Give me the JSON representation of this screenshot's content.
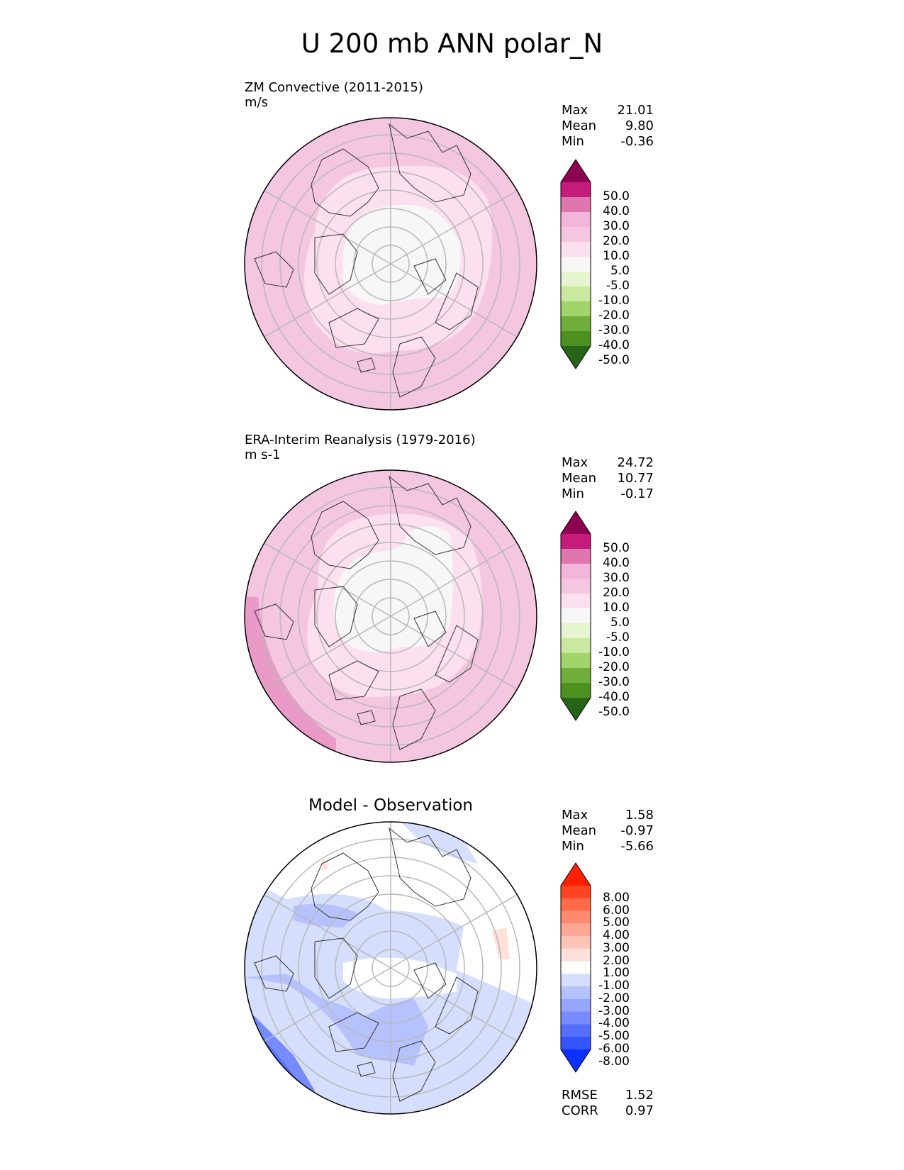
{
  "title": "U 200 mb ANN polar_N",
  "panels": [
    {
      "title": "ZM Convective (2011-2015)",
      "units": "m/s",
      "stats": {
        "max_label": "Max",
        "max": "21.01",
        "mean_label": "Mean",
        "mean": "9.80",
        "min_label": "Min",
        "min": "-0.36"
      },
      "colorbar": {
        "labels": [
          "50.0",
          "40.0",
          "30.0",
          "20.0",
          "10.0",
          "5.0",
          "-5.0",
          "-10.0",
          "-20.0",
          "-30.0",
          "-40.0",
          "-50.0"
        ],
        "colors": [
          "#8e0152",
          "#c51b7d",
          "#de77ae",
          "#f1b6da",
          "#f4c6e0",
          "#fde0ef",
          "#f7f7f7",
          "#e6f5d0",
          "#c9e99e",
          "#a1d46a",
          "#6fae3b",
          "#4d9221",
          "#276419"
        ]
      }
    },
    {
      "title": "ERA-Interim Reanalysis (1979-2016)",
      "units": "m s-1",
      "stats": {
        "max_label": "Max",
        "max": "24.72",
        "mean_label": "Mean",
        "mean": "10.77",
        "min_label": "Min",
        "min": "-0.17"
      },
      "colorbar": {
        "labels": [
          "50.0",
          "40.0",
          "30.0",
          "20.0",
          "10.0",
          "5.0",
          "-5.0",
          "-10.0",
          "-20.0",
          "-30.0",
          "-40.0",
          "-50.0"
        ],
        "colors": [
          "#8e0152",
          "#c51b7d",
          "#de77ae",
          "#f1b6da",
          "#f4c6e0",
          "#fde0ef",
          "#f7f7f7",
          "#e6f5d0",
          "#c9e99e",
          "#a1d46a",
          "#6fae3b",
          "#4d9221",
          "#276419"
        ]
      }
    },
    {
      "title": "Model - Observation",
      "stats": {
        "max_label": "Max",
        "max": "1.58",
        "mean_label": "Mean",
        "mean": "-0.97",
        "min_label": "Min",
        "min": "-5.66"
      },
      "colorbar": {
        "labels": [
          "8.00",
          "6.00",
          "5.00",
          "4.00",
          "3.00",
          "2.00",
          "1.00",
          "-1.00",
          "-2.00",
          "-3.00",
          "-4.00",
          "-5.00",
          "-6.00",
          "-8.00"
        ],
        "colors": [
          "#ff2000",
          "#ff4422",
          "#ff6a4a",
          "#ff8a70",
          "#ffa896",
          "#ffc6b8",
          "#fde0da",
          "#fdfdfd",
          "#d6defd",
          "#b6c2fd",
          "#97a6fd",
          "#768bfd",
          "#5470fb",
          "#3555fc",
          "#0b30ff"
        ]
      },
      "rmse_label": "RMSE",
      "rmse": "1.52",
      "corr_label": "CORR",
      "corr": "0.97"
    }
  ],
  "fill_colors": {
    "model": {
      "outer": "#f4c6e0",
      "mid": "#fde0ef",
      "core": "#f7f7f7",
      "edge": "#f1b6da"
    },
    "obs": {
      "outer": "#f4c6e0",
      "mid": "#fde0ef",
      "core": "#f7f7f7",
      "edge": "#e99ac6"
    },
    "diff": {
      "base": "#ffffff",
      "light": "#d6defd",
      "mid": "#b6c2fd",
      "dark": "#768bfd",
      "darker": "#5470fb",
      "red": "#fde0da"
    }
  }
}
